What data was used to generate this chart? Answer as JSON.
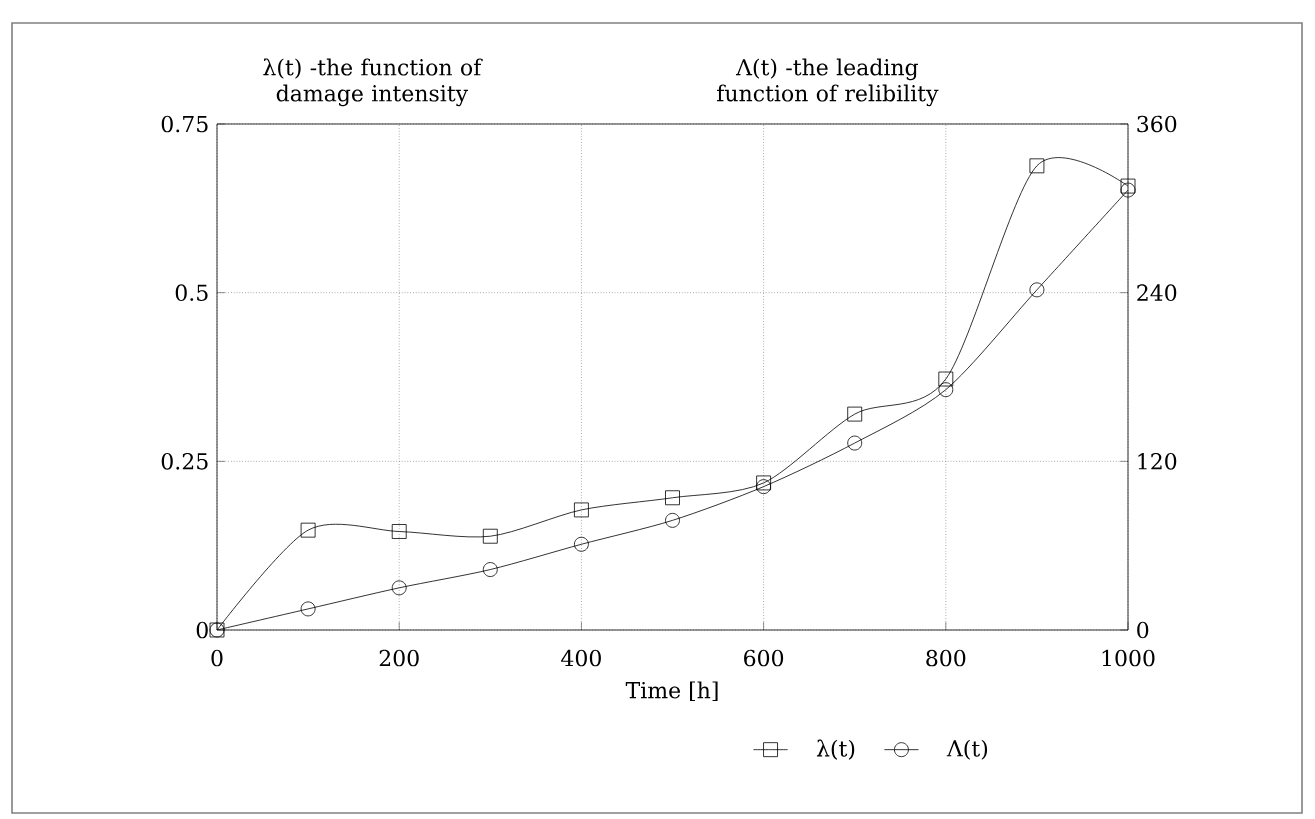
{
  "chart_data": {
    "type": "line",
    "ylabel": "λ(t) -the function of damage intensity",
    "y2label": "Λ(t) -the leading function of relibility",
    "xlabel": "Time [h]",
    "x": [
      0,
      100,
      200,
      300,
      400,
      500,
      600,
      700,
      800,
      900,
      1000
    ],
    "series": [
      {
        "name": "λ(t)",
        "color": "#000000",
        "marker": "square",
        "values": [
          0,
          0.148,
          0.146,
          0.139,
          0.178,
          0.196,
          0.218,
          0.32,
          0.372,
          0.688,
          0.658
        ]
      },
      {
        "name": "Λ(t)",
        "color": "#000000",
        "marker": "circle",
        "axis": "y2",
        "values": [
          0,
          15,
          30,
          43,
          61,
          78,
          102,
          133,
          171,
          242,
          313
        ]
      }
    ],
    "xlim": [
      0,
      1000
    ],
    "xticks": [
      0,
      200,
      400,
      600,
      800,
      1000
    ],
    "ylim": [
      0,
      0.75
    ],
    "yticks": [
      0,
      0.25,
      0.5,
      0.75
    ],
    "y2lim": [
      0,
      360
    ],
    "y2ticks": [
      0,
      120,
      240,
      360
    ],
    "grid": true,
    "legend": "bottom",
    "line_style": "solid"
  }
}
